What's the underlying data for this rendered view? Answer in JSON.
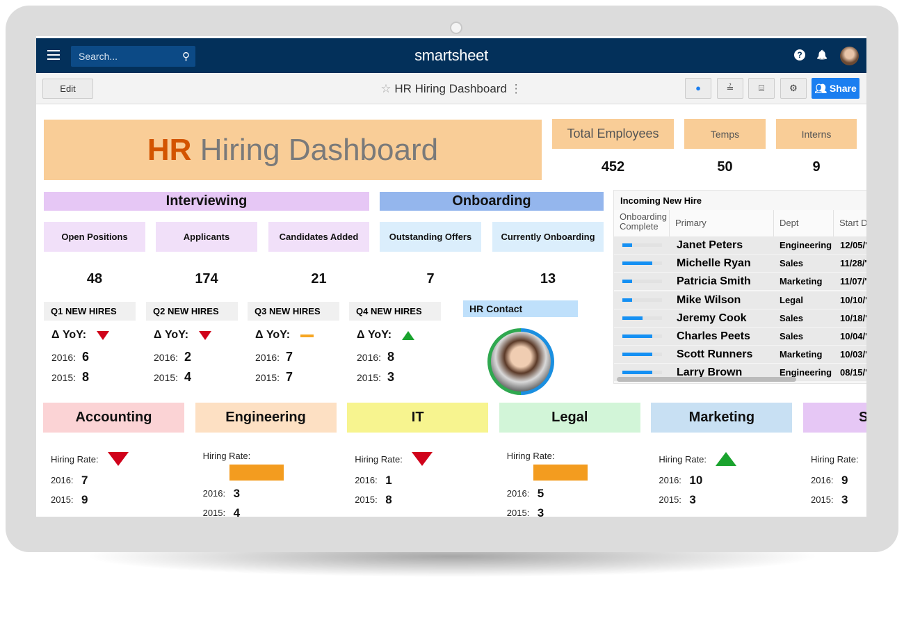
{
  "topbar": {
    "search_placeholder": "Search...",
    "logo": "smartsheet",
    "help_icon": "?",
    "bell_icon": "🔔"
  },
  "toolbar": {
    "edit": "Edit",
    "title": "HR Hiring Dashboard",
    "share": "Share"
  },
  "banner": {
    "hr": "HR",
    "rest": " Hiring Dashboard",
    "hr_color": "#d35400"
  },
  "totals": [
    {
      "label": "Total Employees",
      "value": "452"
    },
    {
      "label": "Temps",
      "value": "50"
    },
    {
      "label": "Interns",
      "value": "9"
    }
  ],
  "sections": {
    "interviewing": "Interviewing",
    "onboarding": "Onboarding"
  },
  "metrics": [
    {
      "label": "Open Positions",
      "value": "48"
    },
    {
      "label": "Applicants",
      "value": "174"
    },
    {
      "label": "Candidates Added",
      "value": "21"
    },
    {
      "label": "Outstanding Offers",
      "value": "7"
    },
    {
      "label": "Currently Onboarding",
      "value": "13"
    }
  ],
  "quarters": [
    {
      "label": "Q1 NEW HIRES",
      "yoy": "Δ YoY:",
      "trend": "down",
      "y2016": "6",
      "y2015": "8"
    },
    {
      "label": "Q2 NEW HIRES",
      "yoy": "Δ YoY:",
      "trend": "down",
      "y2016": "2",
      "y2015": "4"
    },
    {
      "label": "Q3 NEW HIRES",
      "yoy": "Δ YoY:",
      "trend": "flat",
      "y2016": "7",
      "y2015": "7"
    },
    {
      "label": "Q4 NEW HIRES",
      "yoy": "Δ YoY:",
      "trend": "up",
      "y2016": "8",
      "y2015": "3"
    }
  ],
  "year_labels": {
    "y2016": "2016:",
    "y2015": "2015:"
  },
  "hr_contact": "HR Contact",
  "table": {
    "title": "Incoming New Hire",
    "columns": [
      "Onboarding Complete",
      "Primary",
      "Dept",
      "Start D"
    ],
    "rows": [
      {
        "progress": 0.25,
        "name": "Janet Peters",
        "dept": "Engineering",
        "date": "12/05/'"
      },
      {
        "progress": 0.75,
        "name": "Michelle Ryan",
        "dept": "Sales",
        "date": "11/28/'"
      },
      {
        "progress": 0.25,
        "name": "Patricia Smith",
        "dept": "Marketing",
        "date": "11/07/'"
      },
      {
        "progress": 0.25,
        "name": "Mike Wilson",
        "dept": "Legal",
        "date": "10/10/'"
      },
      {
        "progress": 0.5,
        "name": "Jeremy Cook",
        "dept": "Sales",
        "date": "10/18/'"
      },
      {
        "progress": 0.75,
        "name": "Charles Peets",
        "dept": "Sales",
        "date": "10/04/'"
      },
      {
        "progress": 0.75,
        "name": "Scott Runners",
        "dept": "Marketing",
        "date": "10/03/'"
      },
      {
        "progress": 0.75,
        "name": "Larry Brown",
        "dept": "Engineering",
        "date": "08/15/'"
      }
    ]
  },
  "departments": [
    {
      "name": "Accounting",
      "color": "#fbd3d5",
      "rate_label": "Hiring Rate:",
      "trend": "down",
      "y2016": "7",
      "y2015": "9"
    },
    {
      "name": "Engineering",
      "color": "#fde0c3",
      "rate_label": "Hiring Rate:",
      "trend": "flat",
      "y2016": "3",
      "y2015": "4"
    },
    {
      "name": "IT",
      "color": "#f7f48f",
      "rate_label": "Hiring Rate:",
      "trend": "down",
      "y2016": "1",
      "y2015": "8"
    },
    {
      "name": "Legal",
      "color": "#d2f5d8",
      "rate_label": "Hiring Rate:",
      "trend": "flat",
      "y2016": "5",
      "y2015": "3"
    },
    {
      "name": "Marketing",
      "color": "#c8e0f3",
      "rate_label": "Hiring Rate:",
      "trend": "up",
      "y2016": "10",
      "y2015": "3"
    },
    {
      "name": "Sa",
      "color": "#e6c7f5",
      "rate_label": "Hiring Rate:",
      "trend": "none",
      "y2016": "9",
      "y2015": "3"
    }
  ]
}
